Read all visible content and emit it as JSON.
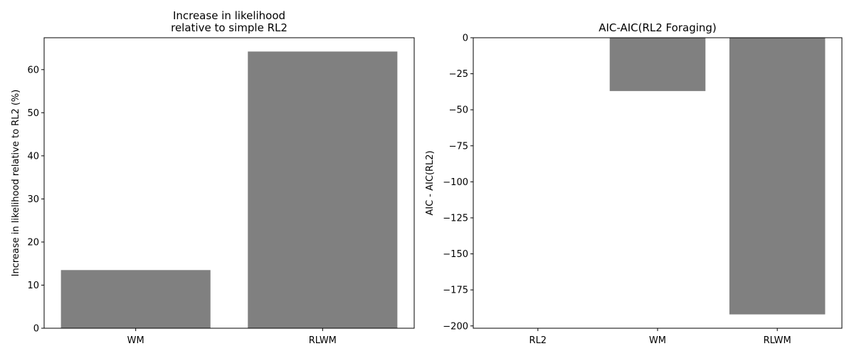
{
  "chart_data": [
    {
      "type": "bar",
      "title_lines": [
        "Increase in likelihood",
        "relative to simple RL2"
      ],
      "xlabel": "",
      "ylabel": "Increase in likelihood relative to RL2 (%)",
      "categories": [
        "WM",
        "RLWM"
      ],
      "values": [
        13.5,
        64.2
      ],
      "ylim": [
        0,
        67.4
      ],
      "yticks": [
        0,
        10,
        20,
        30,
        40,
        50,
        60
      ],
      "ytick_labels": [
        "0",
        "10",
        "20",
        "30",
        "40",
        "50",
        "60"
      ],
      "bar_color": "#808080",
      "grid": false
    },
    {
      "type": "bar",
      "title_lines": [
        "AIC-AIC(RL2 Foraging)"
      ],
      "xlabel": "",
      "ylabel": "AIC - AIC(RL2)",
      "categories": [
        "RL2",
        "WM",
        "RLWM"
      ],
      "values": [
        0,
        -37,
        -192
      ],
      "ylim": [
        -201.6,
        0
      ],
      "yticks": [
        0,
        -25,
        -50,
        -75,
        -100,
        -125,
        -150,
        -175,
        -200
      ],
      "ytick_labels": [
        "0",
        "−25",
        "−50",
        "−75",
        "−100",
        "−125",
        "−150",
        "−175",
        "−200"
      ],
      "bar_color": "#808080",
      "grid": false
    }
  ]
}
